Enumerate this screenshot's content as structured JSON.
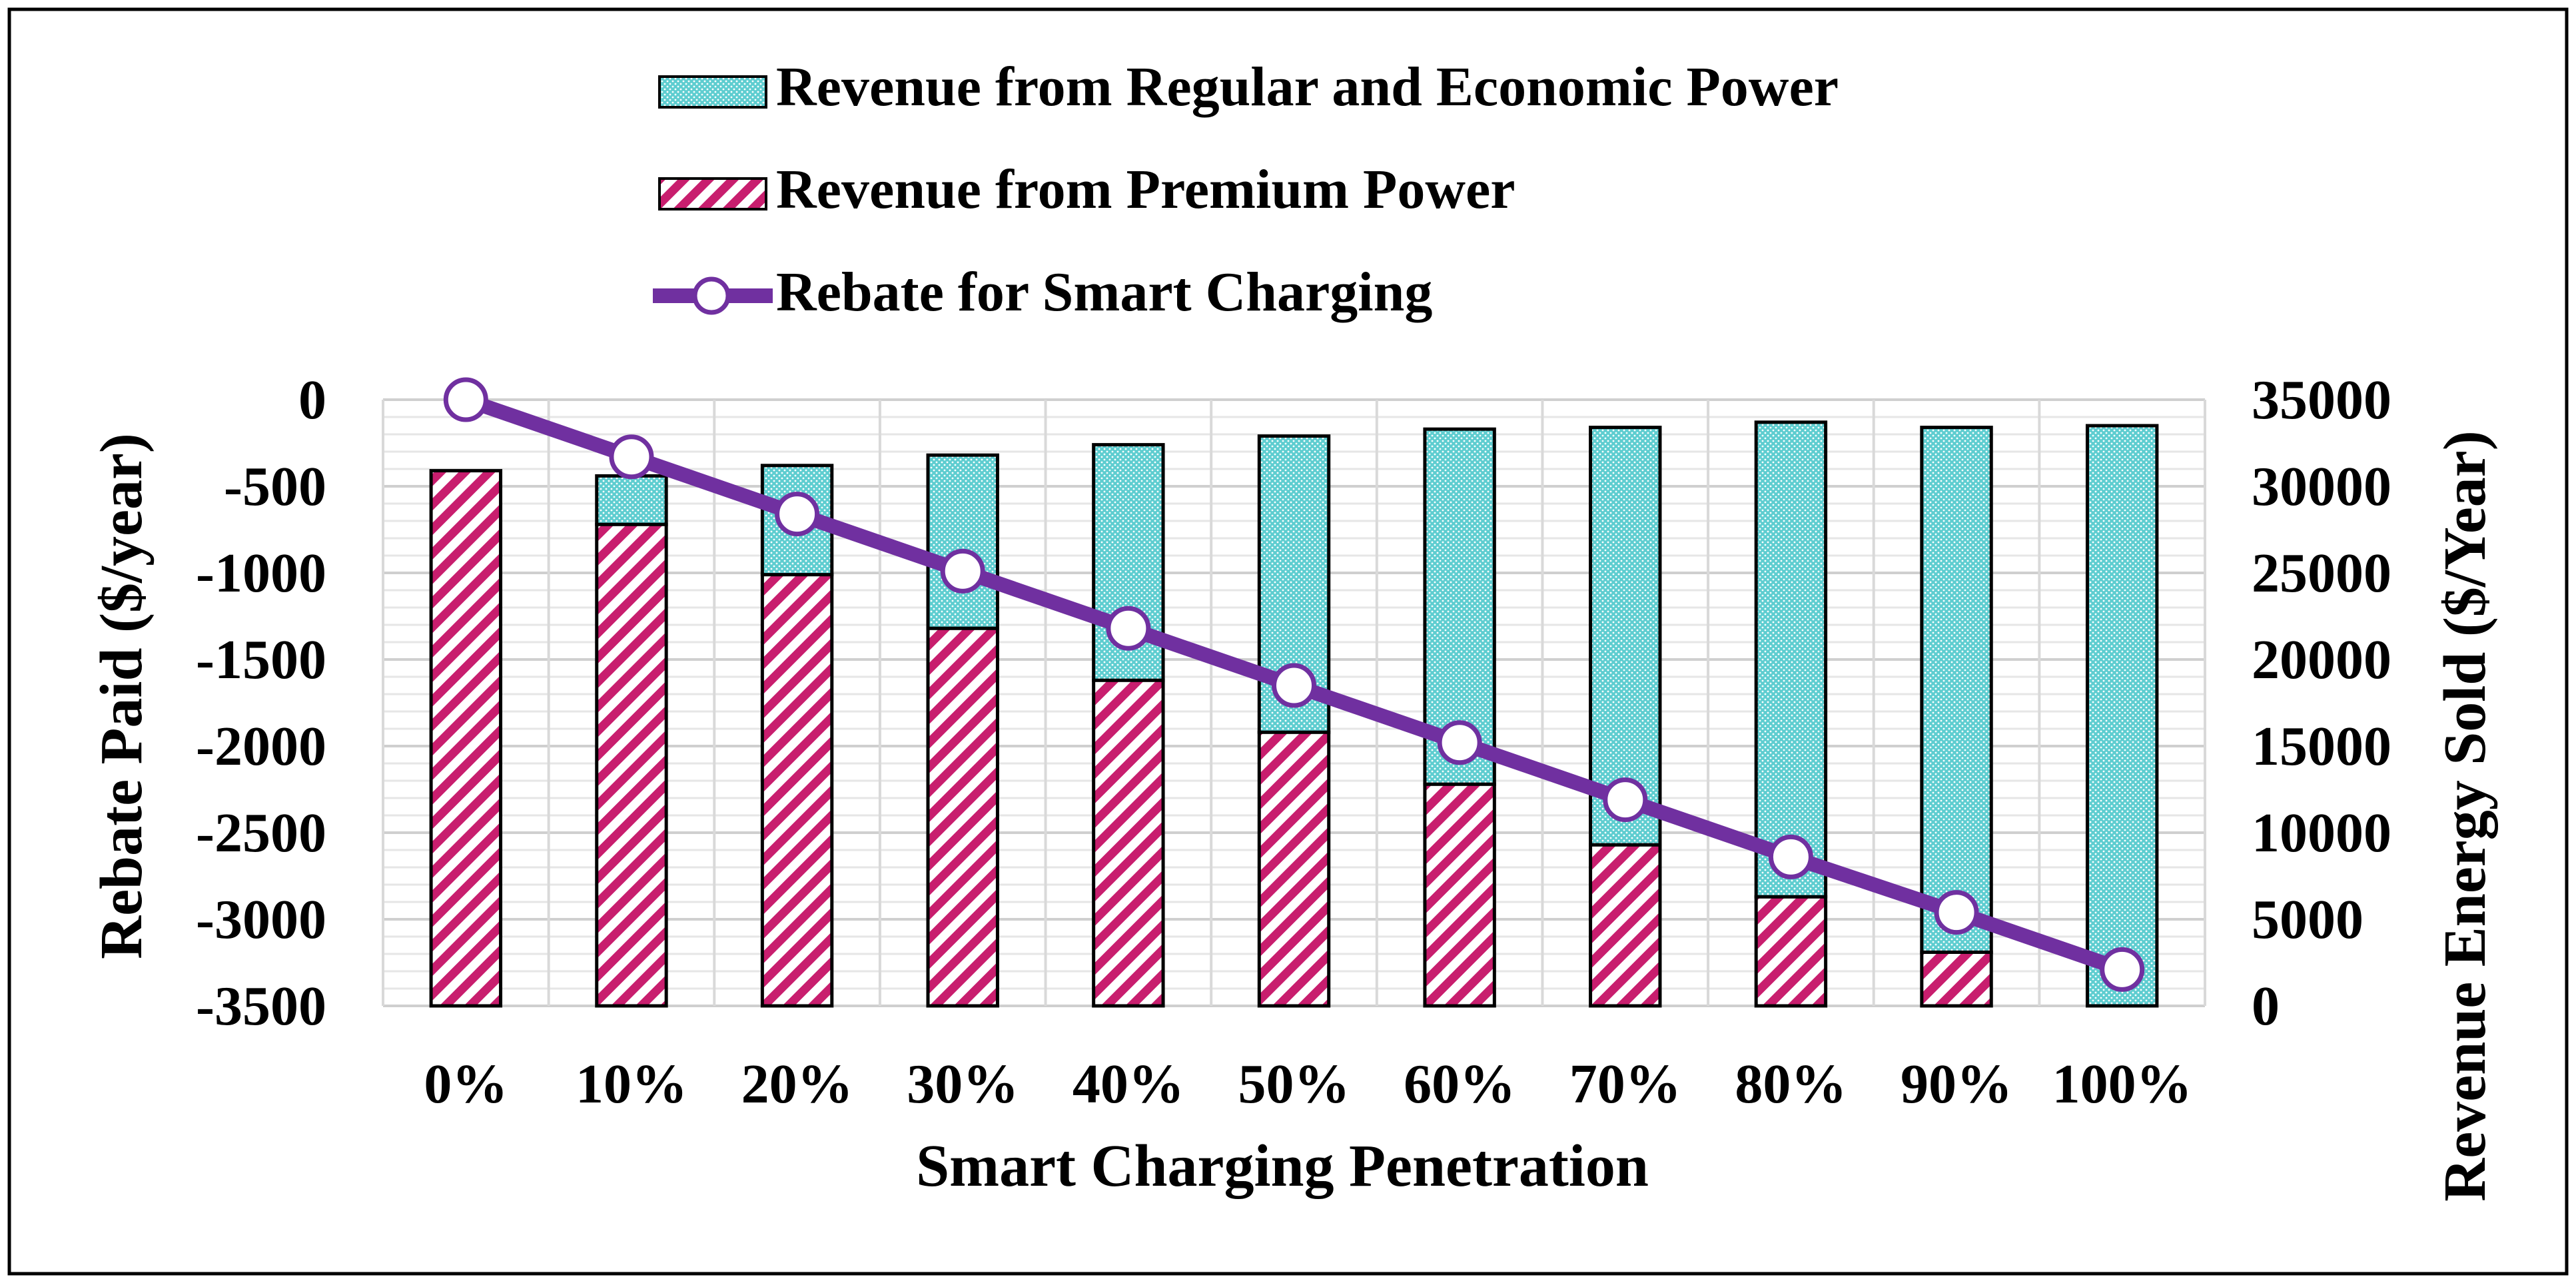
{
  "chart_data": {
    "type": "bar",
    "title": "",
    "xlabel": "Smart Charging Penetration",
    "ylabel": "Rebate Paid ($/year)",
    "y2label": "Revenue Energy Sold ($/Year)",
    "categories": [
      "0%",
      "10%",
      "20%",
      "30%",
      "40%",
      "50%",
      "60%",
      "70%",
      "80%",
      "90%",
      "100%"
    ],
    "ylim": [
      -3500,
      0
    ],
    "yticks": [
      0,
      -500,
      -1000,
      -1500,
      -2000,
      -2500,
      -3000,
      -3500
    ],
    "y2lim": [
      0,
      35000
    ],
    "y2ticks": [
      35000,
      30000,
      25000,
      20000,
      15000,
      10000,
      5000,
      0
    ],
    "legend_position": "top-center",
    "grid": true,
    "series": [
      {
        "name": "Revenue from Regular and Economic Power",
        "kind": "bar-stacked",
        "axis": "right",
        "pattern": "dots",
        "color": "#5ecdd0",
        "values": [
          0,
          2800,
          6300,
          10000,
          13600,
          17100,
          20500,
          24100,
          27400,
          30300,
          33500
        ]
      },
      {
        "name": "Revenue from Premium Power",
        "kind": "bar-stacked",
        "axis": "right",
        "pattern": "diagonal-stripes",
        "color": "#c81e6e",
        "values": [
          30900,
          27800,
          24900,
          21800,
          18800,
          15800,
          12800,
          9300,
          6300,
          3100,
          0
        ]
      },
      {
        "name": "Rebate for Smart Charging",
        "kind": "line",
        "axis": "left",
        "color": "#7030a0",
        "values": [
          0,
          -330,
          -660,
          -990,
          -1320,
          -1650,
          -1980,
          -2310,
          -2640,
          -2960,
          -3290
        ]
      }
    ]
  }
}
